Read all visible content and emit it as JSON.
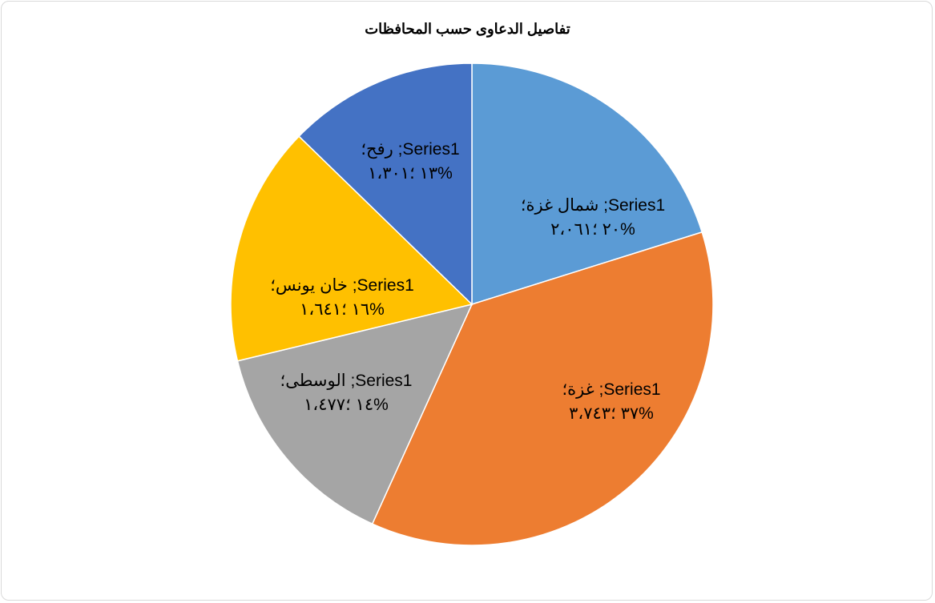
{
  "chart_data": {
    "type": "pie",
    "title": "تفاصيل الدعاوى حسب المحافظات",
    "series": [
      {
        "name": "Series1",
        "slices": [
          {
            "category": "شمال غزة",
            "value": 2061,
            "percent": 20,
            "color": "#5B9BD5",
            "label_line1": "شمال غزة؛ ;Series1",
            "label_line2": "٢٠ ؛٢،٠٦١%"
          },
          {
            "category": "غزة",
            "value": 3743,
            "percent": 37,
            "color": "#ED7D31",
            "label_line1": "غزة؛ ;Series1",
            "label_line2": "٣٧ ؛٣،٧٤٣%"
          },
          {
            "category": "الوسطى",
            "value": 1477,
            "percent": 14,
            "color": "#A5A5A5",
            "label_line1": "الوسطى؛ ;Series1",
            "label_line2": "١٤ ؛١،٤٧٧%"
          },
          {
            "category": "خان يونس",
            "value": 1641,
            "percent": 16,
            "color": "#FFC000",
            "label_line1": "خان يونس؛ ;Series1",
            "label_line2": "١٦ ؛١،٦٤١%"
          },
          {
            "category": "رفح",
            "value": 1301,
            "percent": 13,
            "color": "#4472C4",
            "label_line1": "رفح؛ ;Series1",
            "label_line2": "١٣ ؛١،٣٠١%"
          }
        ]
      }
    ],
    "legend": "none",
    "grid": false
  }
}
